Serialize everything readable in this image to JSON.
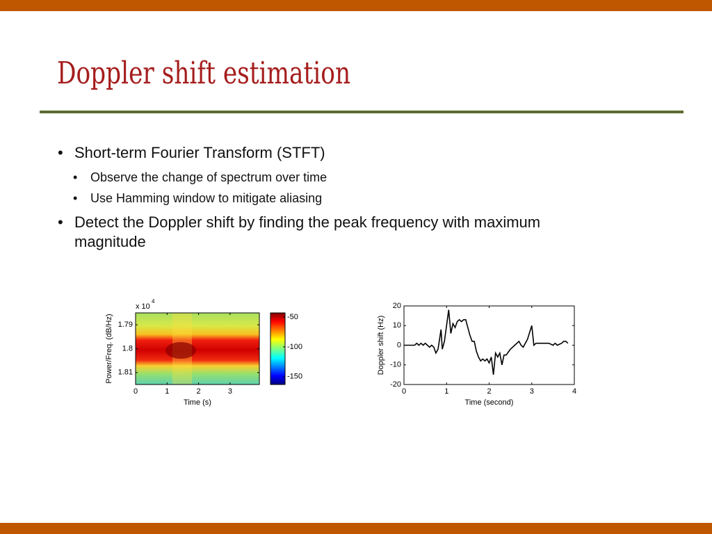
{
  "slide": {
    "title": "Doppler shift estimation",
    "bullets": [
      {
        "text": "Short-term Fourier Transform (STFT)",
        "sub": [
          "Observe the change of spectrum over time",
          "Use Hamming window to mitigate aliasing"
        ]
      },
      {
        "text": "Detect the Doppler shift by finding the peak frequency with maximum magnitude",
        "sub": []
      }
    ]
  },
  "chart_data": [
    {
      "type": "spectrogram",
      "xlabel": "Time (s)",
      "ylabel": "Power/Freq. (dB/Hz)",
      "y_multiplier": "x 10",
      "y_multiplier_exponent": "4",
      "xlim": [
        0,
        3.93
      ],
      "xticks": [
        0,
        1,
        2,
        3
      ],
      "ylim": [
        1.785,
        1.815
      ],
      "yticks": [
        1.79,
        1.8,
        1.81
      ],
      "y_reversed": true,
      "clim": [
        -163,
        -43
      ],
      "cticks": [
        -50,
        -100,
        -150
      ]
    },
    {
      "type": "line",
      "xlabel": "Time (second)",
      "ylabel": "Doppler shift (Hz)",
      "color": "#000000",
      "xlim": [
        0,
        4
      ],
      "xticks": [
        0,
        1,
        2,
        3,
        4
      ],
      "ylim": [
        -20,
        20
      ],
      "yticks": [
        -20,
        -10,
        0,
        10,
        20
      ],
      "x": [
        0,
        0.25,
        0.3,
        0.35,
        0.4,
        0.45,
        0.5,
        0.55,
        0.6,
        0.65,
        0.7,
        0.75,
        0.8,
        0.87,
        0.9,
        0.95,
        1.05,
        1.1,
        1.15,
        1.2,
        1.25,
        1.3,
        1.35,
        1.4,
        1.45,
        1.55,
        1.6,
        1.65,
        1.7,
        1.75,
        1.8,
        1.85,
        1.9,
        1.95,
        2.0,
        2.05,
        2.1,
        2.15,
        2.2,
        2.25,
        2.3,
        2.35,
        2.4,
        2.5,
        2.6,
        2.7,
        2.75,
        2.8,
        2.9,
        3.0,
        3.05,
        3.1,
        3.2,
        3.3,
        3.4,
        3.5,
        3.55,
        3.6,
        3.7,
        3.75,
        3.8,
        3.85
      ],
      "values": [
        0,
        0,
        1,
        0,
        1,
        0,
        1,
        0,
        -1,
        0,
        -1,
        -4,
        -2,
        8,
        -2,
        2,
        18,
        6,
        11,
        9,
        12,
        13,
        12,
        13,
        13,
        5,
        2,
        2,
        -3,
        -6,
        -8,
        -7,
        -8,
        -7,
        -9,
        -6,
        -15,
        -4,
        -6,
        -4,
        -10,
        -5,
        -5,
        -2,
        0,
        2,
        0,
        -1,
        3,
        10,
        0,
        1,
        1,
        1,
        1,
        0,
        1,
        0,
        1,
        2,
        2,
        1
      ]
    }
  ]
}
